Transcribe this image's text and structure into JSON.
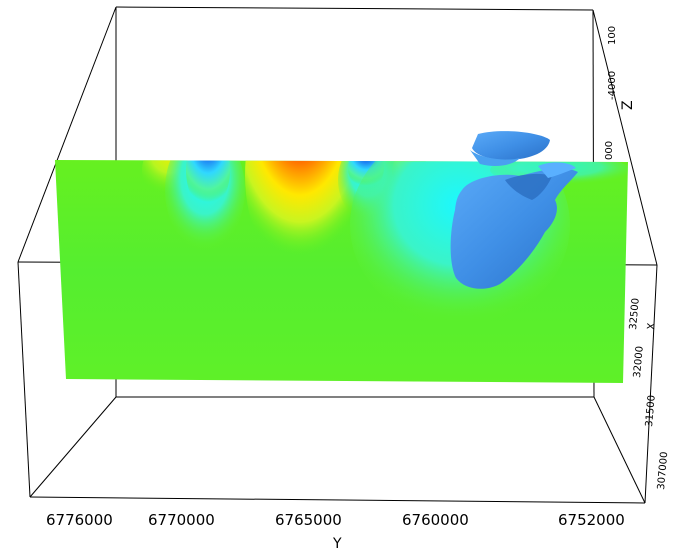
{
  "axes": {
    "y": {
      "title": "Y",
      "ticks": [
        "6776000",
        "6770000",
        "6765000",
        "6760000",
        "6752000"
      ]
    },
    "z": {
      "title": "Z",
      "ticks": [
        "100",
        "-4000",
        "000"
      ]
    },
    "x": {
      "title": "X",
      "ticks": [
        "32500",
        "32000",
        "31500",
        "307000"
      ]
    }
  },
  "colors": {
    "background": "#ffffff",
    "box_lines": "#000000",
    "isosurface": "#3f8fe6",
    "section_base": "#45f02a",
    "high_anomaly": "#ff1000",
    "low_anomaly": "#0a2fd0"
  }
}
